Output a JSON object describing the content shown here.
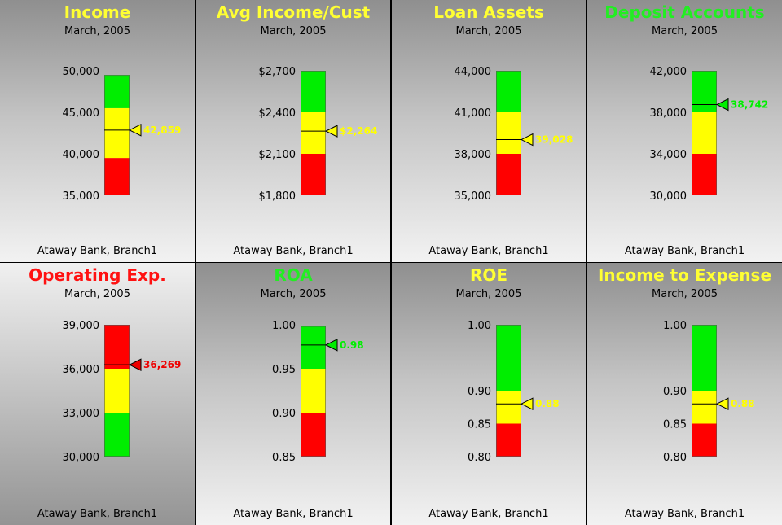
{
  "chart_data": [
    {
      "type": "bullet",
      "title": "Income",
      "subtitle": "March, 2005",
      "footer": "Ataway Bank, Branch1",
      "title_color": "#ffff33",
      "ylim": [
        35000,
        50000
      ],
      "ticks": [
        35000,
        40000,
        45000,
        50000
      ],
      "tick_labels": [
        "35,000",
        "40,000",
        "45,000",
        "50,000"
      ],
      "bands": [
        {
          "color": "#ff0000",
          "from": 35000,
          "to": 39500
        },
        {
          "color": "#ffff00",
          "from": 39500,
          "to": 45500
        },
        {
          "color": "#00ee00",
          "from": 45500,
          "to": 49500
        }
      ],
      "value": 42859,
      "value_label": "42,859",
      "marker_color": "#ffff00"
    },
    {
      "type": "bullet",
      "title": "Avg Income/Cust",
      "subtitle": "March, 2005",
      "footer": "Ataway Bank, Branch1",
      "title_color": "#ffff33",
      "ylim": [
        1800,
        2700
      ],
      "ticks": [
        1800,
        2100,
        2400,
        2700
      ],
      "tick_labels": [
        "$1,800",
        "$2,100",
        "$2,400",
        "$2,700"
      ],
      "bands": [
        {
          "color": "#ff0000",
          "from": 1800,
          "to": 2100
        },
        {
          "color": "#ffff00",
          "from": 2100,
          "to": 2400
        },
        {
          "color": "#00ee00",
          "from": 2400,
          "to": 2700
        }
      ],
      "value": 2264,
      "value_label": "$2,264",
      "marker_color": "#ffff00"
    },
    {
      "type": "bullet",
      "title": "Loan Assets",
      "subtitle": "March, 2005",
      "footer": "Ataway Bank, Branch1",
      "title_color": "#ffff33",
      "ylim": [
        35000,
        44000
      ],
      "ticks": [
        35000,
        38000,
        41000,
        44000
      ],
      "tick_labels": [
        "35,000",
        "38,000",
        "41,000",
        "44,000"
      ],
      "bands": [
        {
          "color": "#ff0000",
          "from": 35000,
          "to": 38000
        },
        {
          "color": "#ffff00",
          "from": 38000,
          "to": 41000
        },
        {
          "color": "#00ee00",
          "from": 41000,
          "to": 44000
        }
      ],
      "value": 39028,
      "value_label": "39,028",
      "marker_color": "#ffff00"
    },
    {
      "type": "bullet",
      "title": "Deposit Accounts",
      "subtitle": "March, 2005",
      "footer": "Ataway Bank, Branch1",
      "title_color": "#22ee22",
      "ylim": [
        30000,
        42000
      ],
      "ticks": [
        30000,
        34000,
        38000,
        42000
      ],
      "tick_labels": [
        "30,000",
        "34,000",
        "38,000",
        "42,000"
      ],
      "bands": [
        {
          "color": "#ff0000",
          "from": 30000,
          "to": 34000
        },
        {
          "color": "#ffff00",
          "from": 34000,
          "to": 38000
        },
        {
          "color": "#00ee00",
          "from": 38000,
          "to": 42000
        }
      ],
      "value": 38742,
      "value_label": "38,742",
      "marker_color": "#00ee00"
    },
    {
      "type": "bullet",
      "title": "Operating Exp.",
      "subtitle": "March, 2005",
      "footer": "Ataway Bank, Branch1",
      "title_color": "#ff1111",
      "ylim": [
        30000,
        39000
      ],
      "ticks": [
        30000,
        33000,
        36000,
        39000
      ],
      "tick_labels": [
        "30,000",
        "33,000",
        "36,000",
        "39,000"
      ],
      "bands": [
        {
          "color": "#00ee00",
          "from": 30000,
          "to": 33000
        },
        {
          "color": "#ffff00",
          "from": 33000,
          "to": 36000
        },
        {
          "color": "#ff0000",
          "from": 36000,
          "to": 39000
        }
      ],
      "value": 36269,
      "value_label": "36,269",
      "marker_color": "#ee0000"
    },
    {
      "type": "bullet",
      "title": "ROA",
      "subtitle": "March, 2005",
      "footer": "Ataway Bank, Branch1",
      "title_color": "#22ee22",
      "ylim": [
        0.85,
        1.0
      ],
      "ticks": [
        0.85,
        0.9,
        0.95,
        1.0
      ],
      "tick_labels": [
        "0.85",
        "0.90",
        "0.95",
        "1.00"
      ],
      "bands": [
        {
          "color": "#ff0000",
          "from": 0.85,
          "to": 0.9
        },
        {
          "color": "#ffff00",
          "from": 0.9,
          "to": 0.95
        },
        {
          "color": "#00ee00",
          "from": 0.95,
          "to": 0.9985
        }
      ],
      "value": 0.977,
      "value_label": "0.98",
      "marker_color": "#00ee00"
    },
    {
      "type": "bullet",
      "title": "ROE",
      "subtitle": "March, 2005",
      "footer": "Ataway Bank, Branch1",
      "title_color": "#ffff33",
      "ylim": [
        0.8,
        1.0
      ],
      "ticks": [
        0.8,
        0.85,
        0.9,
        1.0
      ],
      "tick_labels": [
        "0.80",
        "0.85",
        "0.90",
        "1.00"
      ],
      "bands": [
        {
          "color": "#ff0000",
          "from": 0.8,
          "to": 0.85
        },
        {
          "color": "#ffff00",
          "from": 0.85,
          "to": 0.9
        },
        {
          "color": "#00ee00",
          "from": 0.9,
          "to": 1.0
        }
      ],
      "value": 0.88,
      "value_label": "0.88",
      "marker_color": "#ffff00"
    },
    {
      "type": "bullet",
      "title": "Income to Expense",
      "subtitle": "March, 2005",
      "footer": "Ataway Bank, Branch1",
      "title_color": "#ffff33",
      "ylim": [
        0.8,
        1.0
      ],
      "ticks": [
        0.8,
        0.85,
        0.9,
        1.0
      ],
      "tick_labels": [
        "0.80",
        "0.85",
        "0.90",
        "1.00"
      ],
      "bands": [
        {
          "color": "#ff0000",
          "from": 0.8,
          "to": 0.85
        },
        {
          "color": "#ffff00",
          "from": 0.85,
          "to": 0.9
        },
        {
          "color": "#00ee00",
          "from": 0.9,
          "to": 1.0
        }
      ],
      "value": 0.88,
      "value_label": "0.88",
      "marker_color": "#ffff00"
    }
  ]
}
